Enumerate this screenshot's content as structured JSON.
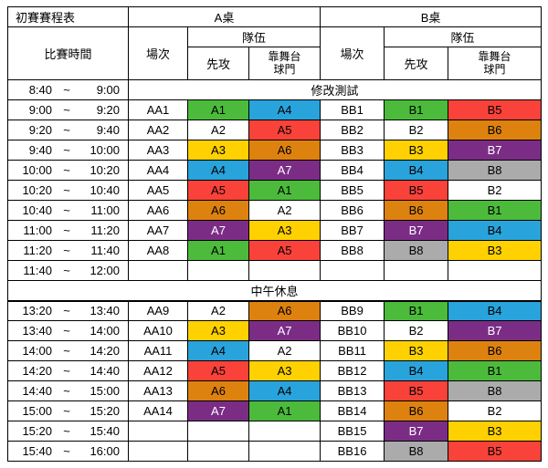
{
  "header": {
    "title": "初賽賽程表",
    "table_a": "A桌",
    "table_b": "B桌",
    "time_label": "比賽時間",
    "match_label": "場次",
    "team_label": "隊伍",
    "first_attack_label": "先攻",
    "stage_goal_label": "靠舞台\n球門"
  },
  "time_separator": "~",
  "team_styles": {
    "A1": {
      "bg": "#4cbb3c",
      "fg": "#000000"
    },
    "A2": {
      "bg": "#ffffff",
      "fg": "#000000"
    },
    "A3": {
      "bg": "#ffd100",
      "fg": "#000000"
    },
    "A4": {
      "bg": "#29a3dc",
      "fg": "#000000"
    },
    "A5": {
      "bg": "#f9423a",
      "fg": "#000000"
    },
    "A6": {
      "bg": "#de820f",
      "fg": "#000000"
    },
    "A7": {
      "bg": "#7b2d86",
      "fg": "#ffffff"
    },
    "B1": {
      "bg": "#4cbb3c",
      "fg": "#000000"
    },
    "B2": {
      "bg": "#ffffff",
      "fg": "#000000"
    },
    "B3": {
      "bg": "#ffd100",
      "fg": "#000000"
    },
    "B4": {
      "bg": "#29a3dc",
      "fg": "#000000"
    },
    "B5": {
      "bg": "#f9423a",
      "fg": "#000000"
    },
    "B6": {
      "bg": "#de820f",
      "fg": "#000000"
    },
    "B7": {
      "bg": "#7b2d86",
      "fg": "#ffffff"
    },
    "B8": {
      "bg": "#ababab",
      "fg": "#000000"
    }
  },
  "rows": [
    {
      "type": "span",
      "start": "8:40",
      "end": "9:00",
      "text": "修改測試"
    },
    {
      "type": "data",
      "start": "9:00",
      "end": "9:20",
      "a_match": "AA1",
      "a_first": "A1",
      "a_goal": "A4",
      "b_match": "BB1",
      "b_first": "B1",
      "b_goal": "B5"
    },
    {
      "type": "data",
      "start": "9:20",
      "end": "9:40",
      "a_match": "AA2",
      "a_first": "A2",
      "a_goal": "A5",
      "b_match": "BB2",
      "b_first": "B2",
      "b_goal": "B6"
    },
    {
      "type": "data",
      "start": "9:40",
      "end": "10:00",
      "a_match": "AA3",
      "a_first": "A3",
      "a_goal": "A6",
      "b_match": "BB3",
      "b_first": "B3",
      "b_goal": "B7"
    },
    {
      "type": "data",
      "start": "10:00",
      "end": "10:20",
      "a_match": "AA4",
      "a_first": "A4",
      "a_goal": "A7",
      "b_match": "BB4",
      "b_first": "B4",
      "b_goal": "B8"
    },
    {
      "type": "data",
      "start": "10:20",
      "end": "10:40",
      "a_match": "AA5",
      "a_first": "A5",
      "a_goal": "A1",
      "b_match": "BB5",
      "b_first": "B5",
      "b_goal": "B2"
    },
    {
      "type": "data",
      "start": "10:40",
      "end": "11:00",
      "a_match": "AA6",
      "a_first": "A6",
      "a_goal": "A2",
      "b_match": "BB6",
      "b_first": "B6",
      "b_goal": "B1"
    },
    {
      "type": "data",
      "start": "11:00",
      "end": "11:20",
      "a_match": "AA7",
      "a_first": "A7",
      "a_goal": "A3",
      "b_match": "BB7",
      "b_first": "B7",
      "b_goal": "B4"
    },
    {
      "type": "data",
      "start": "11:20",
      "end": "11:40",
      "a_match": "AA8",
      "a_first": "A1",
      "a_goal": "A5",
      "b_match": "BB8",
      "b_first": "B8",
      "b_goal": "B3"
    },
    {
      "type": "data",
      "start": "11:40",
      "end": "12:00",
      "a_match": "",
      "a_first": "",
      "a_goal": "",
      "b_match": "",
      "b_first": "",
      "b_goal": ""
    },
    {
      "type": "break",
      "text": "中午休息"
    },
    {
      "type": "data",
      "start": "13:20",
      "end": "13:40",
      "a_match": "AA9",
      "a_first": "A2",
      "a_goal": "A6",
      "b_match": "BB9",
      "b_first": "B1",
      "b_goal": "B4"
    },
    {
      "type": "data",
      "start": "13:40",
      "end": "14:00",
      "a_match": "AA10",
      "a_first": "A3",
      "a_goal": "A7",
      "b_match": "BB10",
      "b_first": "B2",
      "b_goal": "B7"
    },
    {
      "type": "data",
      "start": "14:00",
      "end": "14:20",
      "a_match": "AA11",
      "a_first": "A4",
      "a_goal": "A2",
      "b_match": "BB11",
      "b_first": "B3",
      "b_goal": "B6"
    },
    {
      "type": "data",
      "start": "14:20",
      "end": "14:40",
      "a_match": "AA12",
      "a_first": "A5",
      "a_goal": "A3",
      "b_match": "BB12",
      "b_first": "B4",
      "b_goal": "B1"
    },
    {
      "type": "data",
      "start": "14:40",
      "end": "15:00",
      "a_match": "AA13",
      "a_first": "A6",
      "a_goal": "A4",
      "b_match": "BB13",
      "b_first": "B5",
      "b_goal": "B8"
    },
    {
      "type": "data",
      "start": "15:00",
      "end": "15:20",
      "a_match": "AA14",
      "a_first": "A7",
      "a_goal": "A1",
      "b_match": "BB14",
      "b_first": "B6",
      "b_goal": "B2"
    },
    {
      "type": "data",
      "start": "15:20",
      "end": "15:40",
      "a_match": "",
      "a_first": "",
      "a_goal": "",
      "b_match": "BB15",
      "b_first": "B7",
      "b_goal": "B3"
    },
    {
      "type": "data",
      "start": "15:40",
      "end": "16:00",
      "a_match": "",
      "a_first": "",
      "a_goal": "",
      "b_match": "BB16",
      "b_first": "B8",
      "b_goal": "B5"
    }
  ]
}
